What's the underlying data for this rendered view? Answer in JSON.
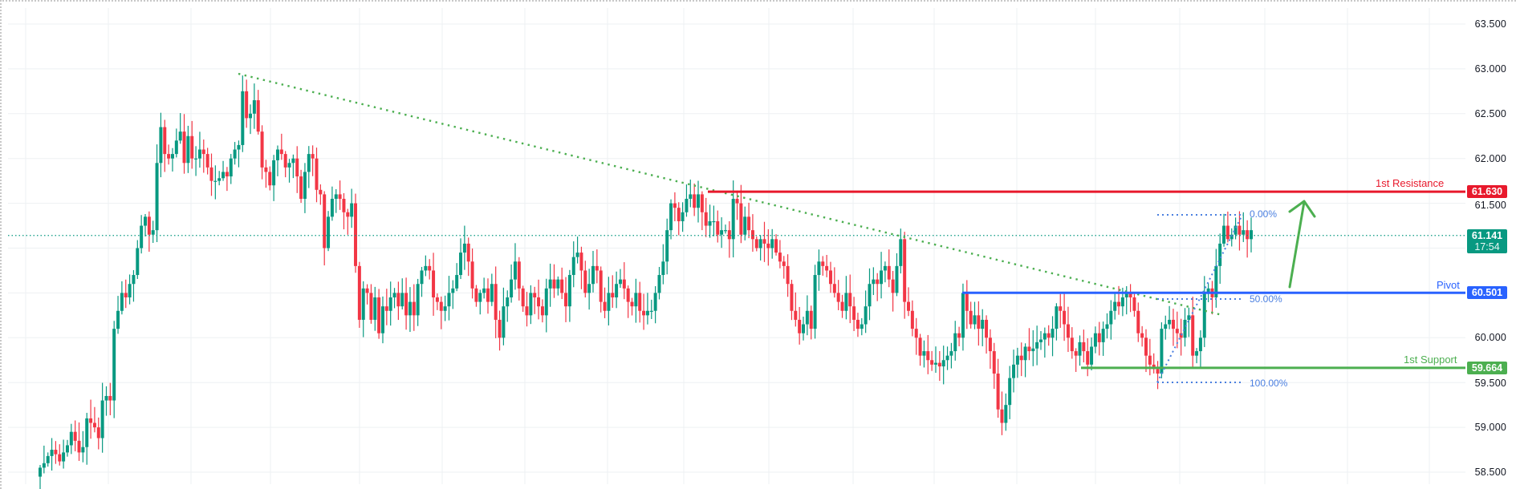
{
  "colors": {
    "up": "#089981",
    "down": "#f23645",
    "grid": "#eef0f3",
    "resistance": "#e8192c",
    "pivot": "#2962ff",
    "support": "#4caf50",
    "trendline": "#4caf50",
    "fib": "#4a7fe0",
    "current_price": "#089981",
    "arrow": "#4caf50"
  },
  "axis": {
    "labels": [
      "63.500",
      "63.000",
      "62.500",
      "62.000",
      "61.500",
      "60.000",
      "59.500",
      "59.000",
      "58.500"
    ]
  },
  "levels": {
    "resistance": {
      "label": "1st Resistance",
      "price": "61.630"
    },
    "pivot": {
      "label": "Pivot",
      "price": "60.501"
    },
    "support": {
      "label": "1st Support",
      "price": "59.664"
    },
    "current": {
      "price": "61.141",
      "countdown": "17:54"
    }
  },
  "fib": {
    "level_0": "0.00%",
    "level_50": "50.00%",
    "level_100": "100.00%"
  },
  "chart_data": {
    "type": "candlestick",
    "title": "",
    "xlabel": "",
    "ylabel": "",
    "ylim": [
      58.4,
      63.7
    ],
    "y_ticks": [
      63.5,
      63.0,
      62.5,
      62.0,
      61.5,
      61.0,
      60.5,
      60.0,
      59.5,
      59.0,
      58.5
    ],
    "grid": true,
    "annotations": [
      {
        "type": "hline",
        "label": "1st Resistance",
        "value": 61.63,
        "color": "#e8192c"
      },
      {
        "type": "hline",
        "label": "Pivot",
        "value": 60.501,
        "color": "#2962ff"
      },
      {
        "type": "hline",
        "label": "1st Support",
        "value": 59.664,
        "color": "#4caf50"
      },
      {
        "type": "current_price",
        "value": 61.141,
        "countdown": "17:54"
      },
      {
        "type": "trendline",
        "style": "dotted",
        "from": 62.95,
        "to": 60.25,
        "color": "#4caf50"
      },
      {
        "type": "fibonacci",
        "levels": {
          "0.00%": 61.37,
          "50.00%": 60.43,
          "100.00%": 59.49
        }
      },
      {
        "type": "arrow",
        "direction": "up",
        "color": "#4caf50"
      }
    ],
    "closes": [
      58.55,
      58.6,
      58.68,
      58.75,
      58.7,
      58.62,
      58.72,
      58.8,
      58.95,
      58.85,
      58.72,
      58.78,
      59.1,
      59.05,
      59.0,
      58.88,
      59.3,
      59.35,
      59.3,
      60.1,
      60.3,
      60.5,
      60.45,
      60.6,
      60.7,
      61.0,
      61.25,
      61.35,
      61.15,
      61.2,
      61.95,
      62.35,
      62.05,
      62.0,
      62.05,
      62.2,
      62.3,
      61.95,
      62.25,
      62.0,
      62.0,
      62.1,
      62.05,
      61.9,
      61.75,
      61.75,
      61.78,
      61.85,
      61.8,
      62.0,
      62.1,
      62.15,
      62.75,
      62.45,
      62.5,
      62.65,
      62.3,
      61.9,
      61.85,
      61.7,
      61.98,
      62.1,
      62.05,
      61.9,
      61.95,
      62.0,
      61.8,
      61.55,
      61.85,
      62.05,
      62.0,
      61.65,
      61.6,
      61.0,
      61.35,
      61.55,
      61.6,
      61.55,
      61.4,
      61.35,
      61.5,
      60.8,
      60.2,
      60.55,
      60.5,
      60.2,
      60.45,
      60.05,
      60.35,
      60.3,
      60.45,
      60.5,
      60.35,
      60.5,
      60.25,
      60.4,
      60.25,
      60.6,
      60.75,
      60.8,
      60.75,
      60.45,
      60.4,
      60.3,
      60.35,
      60.5,
      60.55,
      60.7,
      60.95,
      61.05,
      60.85,
      60.55,
      60.4,
      60.5,
      60.55,
      60.4,
      60.6,
      60.2,
      60.0,
      60.35,
      60.45,
      60.65,
      60.85,
      60.55,
      60.35,
      60.25,
      60.5,
      60.45,
      60.35,
      60.25,
      60.55,
      60.65,
      60.55,
      60.65,
      60.5,
      60.35,
      60.7,
      60.9,
      60.95,
      60.75,
      60.5,
      60.6,
      60.8,
      60.75,
      60.4,
      60.3,
      60.5,
      60.45,
      60.6,
      60.65,
      60.55,
      60.4,
      60.35,
      60.5,
      60.3,
      60.25,
      60.3,
      60.3,
      60.5,
      60.7,
      60.85,
      61.2,
      61.5,
      61.45,
      61.3,
      61.4,
      61.55,
      61.6,
      61.45,
      61.6,
      61.4,
      61.25,
      61.3,
      61.3,
      61.15,
      61.2,
      61.2,
      61.1,
      61.55,
      61.5,
      61.15,
      61.35,
      61.2,
      61.1,
      61.0,
      61.1,
      61.05,
      61.0,
      61.1,
      60.95,
      60.85,
      60.8,
      60.6,
      60.3,
      60.2,
      60.05,
      60.15,
      60.3,
      60.1,
      60.7,
      60.85,
      60.8,
      60.75,
      60.6,
      60.5,
      60.4,
      60.3,
      60.5,
      60.35,
      60.2,
      60.1,
      60.15,
      60.35,
      60.6,
      60.65,
      60.6,
      60.75,
      60.8,
      60.65,
      60.5,
      60.8,
      61.1,
      60.4,
      60.3,
      60.1,
      60.0,
      59.8,
      59.85,
      59.75,
      59.7,
      59.72,
      59.68,
      59.75,
      59.8,
      59.85,
      60.05,
      60.0,
      60.5,
      60.3,
      60.15,
      60.25,
      60.1,
      60.2,
      60.0,
      59.85,
      59.6,
      59.2,
      59.05,
      59.25,
      59.55,
      59.7,
      59.8,
      59.75,
      59.9,
      59.85,
      59.88,
      59.95,
      59.98,
      60.05,
      60.0,
      60.1,
      60.35,
      60.3,
      60.15,
      60.0,
      59.85,
      59.8,
      59.95,
      59.85,
      59.7,
      59.9,
      60.05,
      59.95,
      60.1,
      60.15,
      60.3,
      60.4,
      60.35,
      60.45,
      60.5,
      60.45,
      60.3,
      60.05,
      60.0,
      59.8,
      59.7,
      59.65,
      59.6,
      60.1,
      60.15,
      60.2,
      60.1,
      60.05,
      60.0,
      60.2,
      60.25,
      59.8,
      59.85,
      60.0,
      60.5,
      60.55,
      60.45,
      60.8,
      61.05,
      61.25,
      61.1,
      61.15,
      61.25,
      61.15,
      61.2,
      61.1,
      61.2
    ]
  }
}
